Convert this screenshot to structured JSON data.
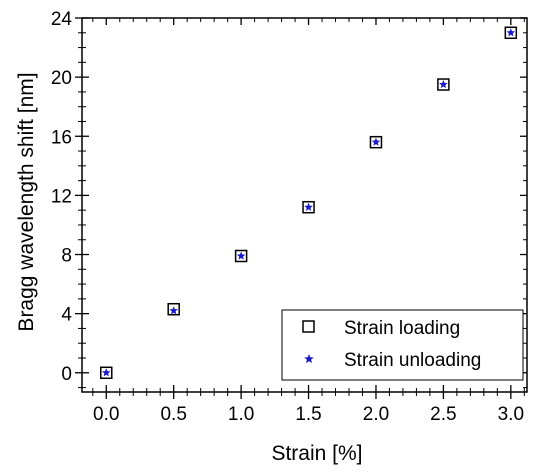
{
  "chart_data": {
    "type": "scatter",
    "title": "",
    "xlabel": "Strain [%]",
    "ylabel": "Bragg wavelength shift [nm]",
    "xlim": [
      -0.18,
      3.12
    ],
    "ylim": [
      -1.3,
      24
    ],
    "xticks": [
      0.0,
      0.5,
      1.0,
      1.5,
      2.0,
      2.5,
      3.0
    ],
    "xtick_labels": [
      "0.0",
      "0.5",
      "1.0",
      "1.5",
      "2.0",
      "2.5",
      "3.0"
    ],
    "yticks": [
      0,
      4,
      8,
      12,
      16,
      20,
      24
    ],
    "ytick_labels": [
      "0",
      "4",
      "8",
      "12",
      "16",
      "20",
      "24"
    ],
    "grid": false,
    "legend_position": "bottom-right",
    "series": [
      {
        "name": "Strain loading",
        "marker": "open-square",
        "color": "#000000",
        "x": [
          0.0,
          0.5,
          1.0,
          1.5,
          2.0,
          2.5,
          3.0
        ],
        "y": [
          0.0,
          4.3,
          7.9,
          11.2,
          15.6,
          19.5,
          23.0
        ]
      },
      {
        "name": "Strain unloading",
        "marker": "star",
        "color": "#1a1acc",
        "x": [
          0.0,
          0.5,
          1.0,
          1.5,
          2.0,
          2.5,
          3.0
        ],
        "y": [
          0.0,
          4.2,
          7.9,
          11.2,
          15.6,
          19.5,
          23.0
        ]
      }
    ]
  }
}
